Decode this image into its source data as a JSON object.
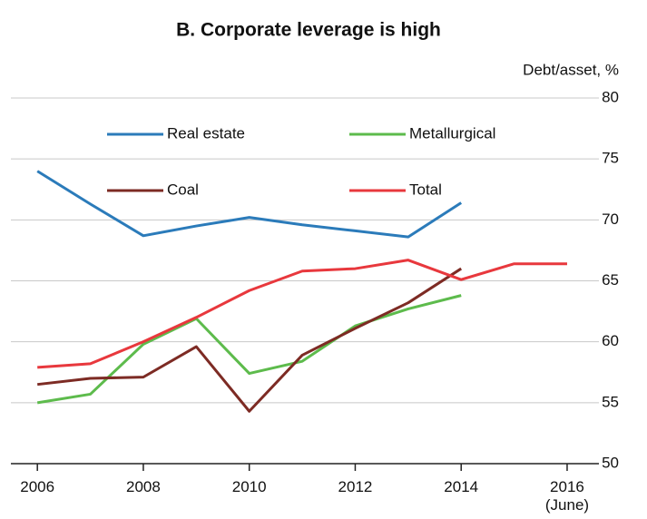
{
  "chart_data": {
    "type": "line",
    "title": "B. Corporate leverage is high",
    "y_axis_label": "Debt/asset, %",
    "x": [
      2006,
      2007,
      2008,
      2009,
      2010,
      2011,
      2012,
      2013,
      2014,
      2015,
      2016
    ],
    "series": [
      {
        "name": "Real estate",
        "color": "#2b7bba",
        "values": [
          74,
          71.3,
          68.7,
          69.5,
          70.2,
          69.6,
          69.1,
          68.6,
          71.4,
          null,
          null
        ]
      },
      {
        "name": "Metallurgical",
        "color": "#5dbb4c",
        "values": [
          55,
          55.7,
          59.8,
          61.9,
          57.4,
          58.4,
          61.3,
          62.7,
          63.8,
          null,
          null
        ]
      },
      {
        "name": "Coal",
        "color": "#7d2b24",
        "values": [
          56.5,
          57,
          57.1,
          59.6,
          54.3,
          58.9,
          61.1,
          63.2,
          66,
          null,
          null
        ]
      },
      {
        "name": "Total",
        "color": "#e8383d",
        "values": [
          57.9,
          58.2,
          60,
          62,
          64.2,
          65.8,
          66,
          66.7,
          65.1,
          66.4,
          66.4
        ]
      }
    ],
    "xlim": [
      2005.5,
      2016.6
    ],
    "xticks": [
      2006,
      2008,
      2010,
      2012,
      2014,
      {
        "value": 2016,
        "label": "2016\n(June)"
      }
    ],
    "ylim": [
      50,
      80
    ],
    "yticks": [
      50,
      55,
      60,
      65,
      70,
      75,
      80
    ],
    "grid": true
  }
}
